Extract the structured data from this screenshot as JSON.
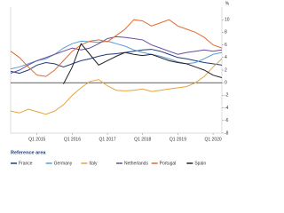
{
  "chart_data": {
    "type": "line",
    "y_label": "%",
    "legend_title": "Reference area",
    "categories": [
      null,
      null,
      null,
      "Q1 2015",
      null,
      null,
      null,
      "Q1 2016",
      null,
      null,
      null,
      "Q1 2017",
      null,
      null,
      null,
      "Q1 2018",
      null,
      null,
      null,
      "Q1 2019",
      null,
      null,
      null,
      "Q1 2020",
      null
    ],
    "series": [
      {
        "name": "France",
        "color": "#1f3d7a",
        "values": [
          1.8,
          1.5,
          2.0,
          2.8,
          3.2,
          3.0,
          2.5,
          3.0,
          3.5,
          3.8,
          4.2,
          4.5,
          4.6,
          4.8,
          5.0,
          5.2,
          5.3,
          5.0,
          4.5,
          4.0,
          3.8,
          3.5,
          3.2,
          3.0,
          2.8
        ]
      },
      {
        "name": "Germany",
        "color": "#5b9bd5",
        "values": [
          2.2,
          2.5,
          3.0,
          3.5,
          3.8,
          4.5,
          5.5,
          6.2,
          6.6,
          6.5,
          6.4,
          6.6,
          6.2,
          5.8,
          5.2,
          4.8,
          4.5,
          4.2,
          3.8,
          3.3,
          3.0,
          3.2,
          3.8,
          4.5,
          4.8
        ]
      },
      {
        "name": "Italy",
        "color": "#e8a33d",
        "values": [
          -4.5,
          -4.8,
          -4.2,
          -4.6,
          -5.0,
          -4.5,
          -3.5,
          -2.0,
          -0.8,
          0.2,
          0.5,
          -0.5,
          -1.2,
          -1.3,
          -1.2,
          -1.0,
          -1.4,
          -1.2,
          -1.0,
          -0.8,
          -0.6,
          0.0,
          1.0,
          2.5,
          3.8
        ]
      },
      {
        "name": "Netherlands",
        "color": "#6a4c9c",
        "values": [
          1.5,
          2.0,
          2.8,
          3.5,
          4.0,
          4.5,
          5.0,
          5.5,
          5.2,
          5.5,
          6.2,
          7.0,
          7.3,
          7.2,
          7.0,
          6.8,
          6.0,
          5.5,
          5.0,
          4.5,
          4.8,
          5.0,
          5.2,
          5.0,
          5.2
        ]
      },
      {
        "name": "Portugal",
        "color": "#e06c2e",
        "values": [
          5.0,
          4.0,
          2.5,
          1.2,
          1.0,
          2.0,
          3.5,
          5.0,
          6.0,
          6.6,
          6.8,
          6.5,
          7.5,
          8.5,
          10.0,
          9.8,
          9.0,
          9.5,
          10.0,
          9.0,
          8.5,
          8.0,
          7.2,
          6.0,
          5.5
        ]
      },
      {
        "name": "Spain",
        "color": "#222222",
        "values": [
          null,
          null,
          null,
          null,
          null,
          null,
          -0.2,
          2.5,
          6.2,
          4.5,
          2.8,
          3.5,
          4.2,
          4.8,
          4.5,
          4.3,
          4.5,
          4.0,
          3.5,
          3.2,
          3.0,
          2.5,
          2.0,
          1.2,
          0.8
        ]
      }
    ],
    "ylim": [
      -8,
      12
    ],
    "yticks": [
      -8,
      -6,
      -4,
      -2,
      0,
      2,
      4,
      6,
      8,
      10
    ],
    "legend_position": "bottom"
  }
}
